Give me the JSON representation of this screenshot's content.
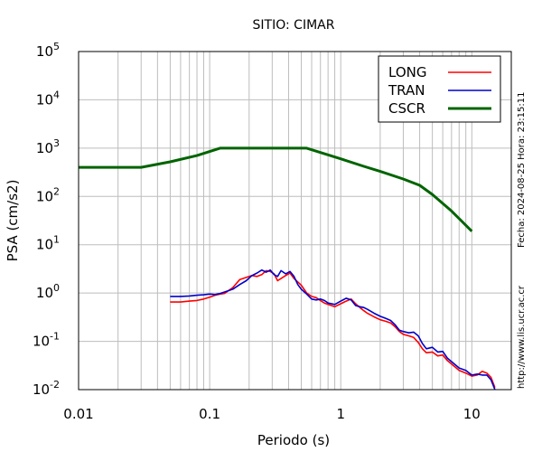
{
  "chart_data": {
    "type": "line",
    "title": "SITIO: CIMAR",
    "xlabel": "Periodo (s)",
    "ylabel": "PSA (cm/s2)",
    "x_scale": "log",
    "y_scale": "log",
    "xlim": [
      0.01,
      20
    ],
    "ylim": [
      0.01,
      100000
    ],
    "x_ticks": [
      {
        "value": 0.01,
        "label": "0.01"
      },
      {
        "value": 0.1,
        "label": "0.1"
      },
      {
        "value": 1,
        "label": "1"
      },
      {
        "value": 10,
        "label": "10"
      }
    ],
    "y_ticks": [
      {
        "value": 0.01,
        "base": "10",
        "exp": "-2"
      },
      {
        "value": 0.1,
        "base": "10",
        "exp": "-1"
      },
      {
        "value": 1,
        "base": "10",
        "exp": "0"
      },
      {
        "value": 10,
        "base": "10",
        "exp": "1"
      },
      {
        "value": 100,
        "base": "10",
        "exp": "2"
      },
      {
        "value": 1000,
        "base": "10",
        "exp": "3"
      },
      {
        "value": 10000,
        "base": "10",
        "exp": "4"
      },
      {
        "value": 100000,
        "base": "10",
        "exp": "5"
      }
    ],
    "grid": true,
    "legend_position": "top-right",
    "side_labels": {
      "date": "Fecha: 2024-08-25 Hora: 23:15:11",
      "url": "http://www.lis.ucr.ac.cr"
    },
    "series": [
      {
        "name": "LONG",
        "color": "#ff0000",
        "x": [
          0.05,
          0.06,
          0.07,
          0.08,
          0.09,
          0.1,
          0.11,
          0.12,
          0.13,
          0.15,
          0.17,
          0.19,
          0.21,
          0.23,
          0.25,
          0.27,
          0.29,
          0.31,
          0.33,
          0.35,
          0.38,
          0.41,
          0.44,
          0.47,
          0.5,
          0.55,
          0.6,
          0.65,
          0.7,
          0.75,
          0.8,
          0.9,
          1.0,
          1.1,
          1.2,
          1.3,
          1.4,
          1.5,
          1.6,
          1.8,
          2.0,
          2.2,
          2.4,
          2.6,
          2.8,
          3.0,
          3.3,
          3.6,
          3.9,
          4.2,
          4.5,
          5.0,
          5.5,
          6.0,
          6.5,
          7.0,
          8.0,
          9.0,
          10.0,
          11.0,
          12.0,
          13.0,
          14.0,
          15.0
        ],
        "values": [
          0.65,
          0.65,
          0.68,
          0.7,
          0.75,
          0.82,
          0.9,
          0.95,
          0.98,
          1.3,
          1.9,
          2.1,
          2.3,
          2.2,
          2.4,
          2.9,
          2.8,
          2.5,
          1.8,
          2.0,
          2.3,
          2.6,
          2.0,
          1.7,
          1.45,
          1.0,
          0.85,
          0.8,
          0.7,
          0.62,
          0.58,
          0.52,
          0.6,
          0.68,
          0.75,
          0.6,
          0.5,
          0.43,
          0.38,
          0.32,
          0.28,
          0.26,
          0.24,
          0.2,
          0.16,
          0.14,
          0.13,
          0.12,
          0.095,
          0.07,
          0.058,
          0.06,
          0.05,
          0.052,
          0.04,
          0.034,
          0.025,
          0.022,
          0.019,
          0.02,
          0.024,
          0.022,
          0.018,
          0.011
        ]
      },
      {
        "name": "TRAN",
        "color": "#0000cc",
        "x": [
          0.05,
          0.06,
          0.07,
          0.08,
          0.09,
          0.1,
          0.11,
          0.12,
          0.13,
          0.15,
          0.17,
          0.19,
          0.21,
          0.23,
          0.25,
          0.27,
          0.29,
          0.31,
          0.33,
          0.35,
          0.38,
          0.41,
          0.44,
          0.47,
          0.5,
          0.55,
          0.6,
          0.65,
          0.7,
          0.75,
          0.8,
          0.9,
          1.0,
          1.1,
          1.2,
          1.3,
          1.4,
          1.5,
          1.6,
          1.8,
          2.0,
          2.2,
          2.4,
          2.6,
          2.8,
          3.0,
          3.3,
          3.6,
          3.9,
          4.2,
          4.5,
          5.0,
          5.5,
          6.0,
          6.5,
          7.0,
          8.0,
          9.0,
          10.0,
          11.0,
          12.0,
          13.0,
          14.0,
          15.0
        ],
        "values": [
          0.85,
          0.85,
          0.87,
          0.9,
          0.92,
          0.95,
          0.93,
          0.98,
          1.05,
          1.2,
          1.5,
          1.8,
          2.3,
          2.6,
          3.0,
          2.7,
          3.0,
          2.4,
          2.2,
          2.9,
          2.5,
          2.8,
          2.2,
          1.5,
          1.2,
          0.95,
          0.75,
          0.72,
          0.75,
          0.7,
          0.62,
          0.58,
          0.68,
          0.78,
          0.72,
          0.55,
          0.52,
          0.5,
          0.46,
          0.38,
          0.33,
          0.3,
          0.27,
          0.22,
          0.17,
          0.16,
          0.15,
          0.155,
          0.13,
          0.09,
          0.07,
          0.075,
          0.06,
          0.062,
          0.045,
          0.038,
          0.028,
          0.025,
          0.02,
          0.021,
          0.02,
          0.02,
          0.016,
          0.01
        ]
      },
      {
        "name": "CSCR",
        "color": "#006400",
        "x": [
          0.01,
          0.03,
          0.05,
          0.08,
          0.12,
          0.2,
          0.55,
          1.0,
          1.5,
          2.0,
          3.0,
          4.0,
          5.0,
          7.0,
          10.0
        ],
        "values": [
          400,
          400,
          520,
          700,
          1000,
          1000,
          1000,
          600,
          420,
          330,
          230,
          170,
          110,
          50,
          19
        ]
      }
    ]
  }
}
